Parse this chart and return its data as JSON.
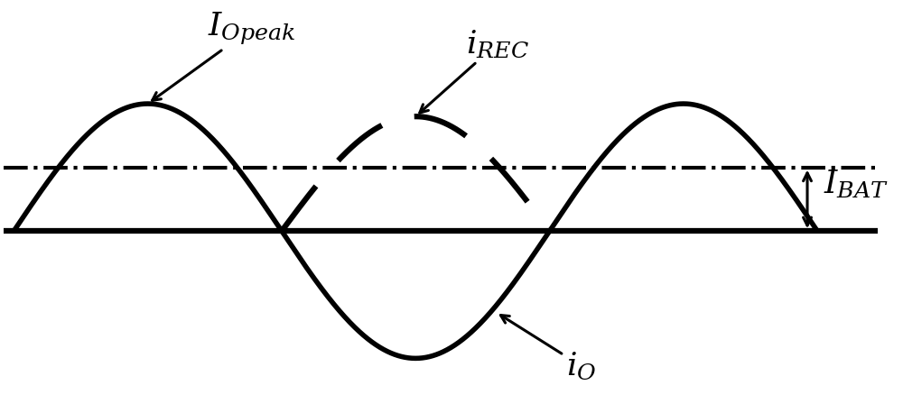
{
  "background_color": "#ffffff",
  "sine_amplitude": 1.0,
  "x_end": 4.0,
  "I_BAT_level": 0.5,
  "line_color": "#000000",
  "linewidth_solid": 4.0,
  "linewidth_dashed": 4.5,
  "linewidth_dashdot": 3.0,
  "linewidth_zero": 4.5,
  "label_I_Opeak": "$I_{Opeak}$",
  "label_i_REC": "$i_{REC}$",
  "label_i_O": "$i_{O}$",
  "label_I_BAT": "$I_{BAT}$",
  "fontsize": 26,
  "figsize": [
    10.0,
    4.58
  ],
  "dpi": 100,
  "x_lim": [
    -0.05,
    4.3
  ],
  "y_lim": [
    -1.4,
    1.7
  ]
}
